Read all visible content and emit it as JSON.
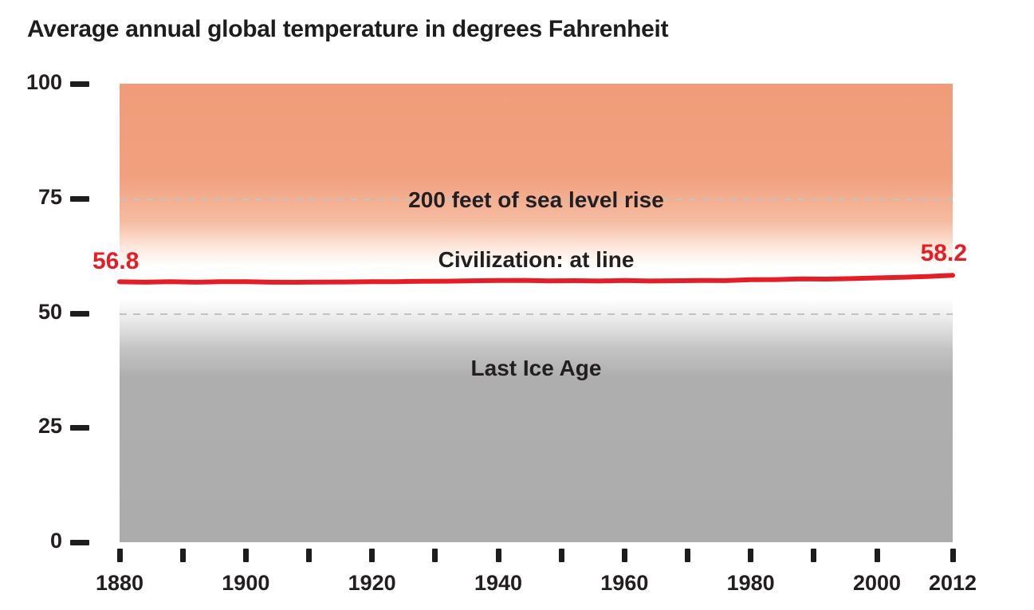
{
  "title": "Average annual global temperature in degrees Fahrenheit",
  "colors": {
    "line": "#e41e26",
    "endpoint_label": "#e41e26",
    "annotation_text": "#231f20",
    "gridline": "#c2c2c2",
    "warm_zone_top": "#f09c79",
    "cold_zone_gray": "#acacac",
    "axis": "#1d1d1d"
  },
  "chart_data": {
    "type": "line",
    "title": "Average annual global temperature in degrees Fahrenheit",
    "xlabel": "",
    "ylabel": "",
    "xlim": [
      1880,
      2012
    ],
    "ylim": [
      0,
      100
    ],
    "y_ticks": [
      100,
      75,
      50,
      25,
      0
    ],
    "x_ticks": [
      {
        "year": 1880,
        "label": "1880"
      },
      {
        "year": 1890,
        "label": ""
      },
      {
        "year": 1900,
        "label": "1900"
      },
      {
        "year": 1910,
        "label": ""
      },
      {
        "year": 1920,
        "label": "1920"
      },
      {
        "year": 1930,
        "label": ""
      },
      {
        "year": 1940,
        "label": "1940"
      },
      {
        "year": 1950,
        "label": ""
      },
      {
        "year": 1960,
        "label": "1960"
      },
      {
        "year": 1970,
        "label": ""
      },
      {
        "year": 1980,
        "label": "1980"
      },
      {
        "year": 1990,
        "label": ""
      },
      {
        "year": 2000,
        "label": "2000"
      },
      {
        "year": 2012,
        "label": "2012"
      }
    ],
    "gridlines_dashed_at": [
      75,
      50
    ],
    "legend": "none",
    "grid": "dashed horizontal at 75 and 50 only",
    "series": [
      {
        "name": "Average annual global temperature (degrees Fahrenheit)",
        "x": [
          1880,
          1884,
          1888,
          1892,
          1896,
          1900,
          1904,
          1908,
          1912,
          1916,
          1920,
          1924,
          1928,
          1932,
          1936,
          1940,
          1944,
          1948,
          1952,
          1956,
          1960,
          1964,
          1968,
          1972,
          1976,
          1980,
          1984,
          1988,
          1992,
          1996,
          2000,
          2004,
          2008,
          2012
        ],
        "values": [
          56.8,
          56.72,
          56.82,
          56.72,
          56.82,
          56.84,
          56.72,
          56.7,
          56.74,
          56.76,
          56.82,
          56.84,
          56.92,
          56.94,
          57.02,
          57.08,
          57.12,
          57.0,
          57.04,
          56.98,
          57.08,
          56.98,
          57.02,
          57.1,
          57.06,
          57.26,
          57.28,
          57.42,
          57.4,
          57.5,
          57.66,
          57.8,
          57.94,
          58.2
        ]
      }
    ],
    "annotations": [
      {
        "id": "sea",
        "text": "200 feet of sea level rise",
        "y": 74.6
      },
      {
        "id": "civ",
        "text": "Civilization: at line",
        "y": 61.6
      },
      {
        "id": "ice",
        "text": "Last Ice Age",
        "y": 38
      }
    ],
    "endpoint_labels": {
      "start": "56.8",
      "end": "58.2"
    }
  }
}
